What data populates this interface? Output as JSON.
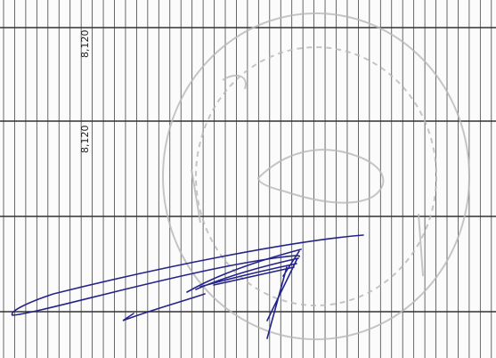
{
  "table": {
    "rows": [
      [
        "8,120"
      ],
      [
        "8,120"
      ]
    ]
  }
}
